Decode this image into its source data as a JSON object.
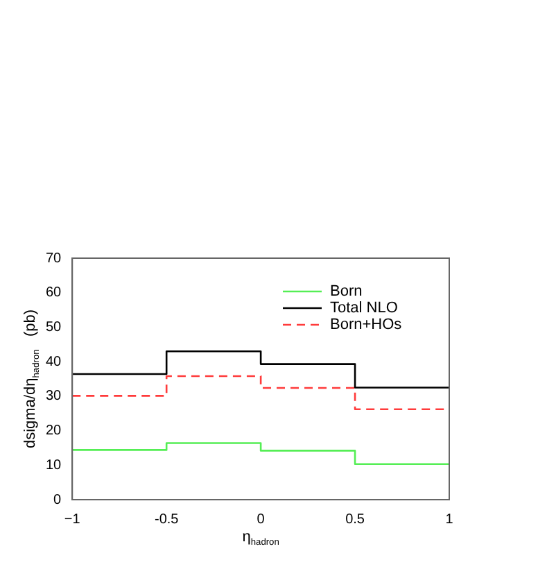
{
  "chart_data": {
    "type": "step",
    "xlabel": "η$_{hadron}$",
    "ylabel": "dsigma/dη$_{hadron}$   (pb)",
    "x": [
      -1,
      -0.5,
      0,
      0.5,
      1
    ],
    "series": [
      {
        "name": "Born",
        "color": "#55ee55",
        "values": [
          14.4,
          16.4,
          14.2,
          10.3,
          10.3
        ]
      },
      {
        "name": "Total NLO",
        "color": "#000000",
        "values": [
          36.4,
          43,
          39.3,
          32.5,
          32.5
        ]
      },
      {
        "name": "Born+HOs",
        "color": "#ff3b3b",
        "line_style": "dashed",
        "values": [
          30.1,
          35.8,
          32.4,
          26.2,
          26.2
        ]
      }
    ],
    "xlim": [
      -1,
      1
    ],
    "xticks": [
      {
        "value": -1,
        "label": "−1"
      },
      -0.5,
      0,
      0.5,
      1
    ],
    "ylim": [
      0,
      70
    ],
    "yticks": [
      0,
      10,
      20,
      30,
      40,
      50,
      60,
      70
    ],
    "grid": false,
    "legend": "top right"
  }
}
